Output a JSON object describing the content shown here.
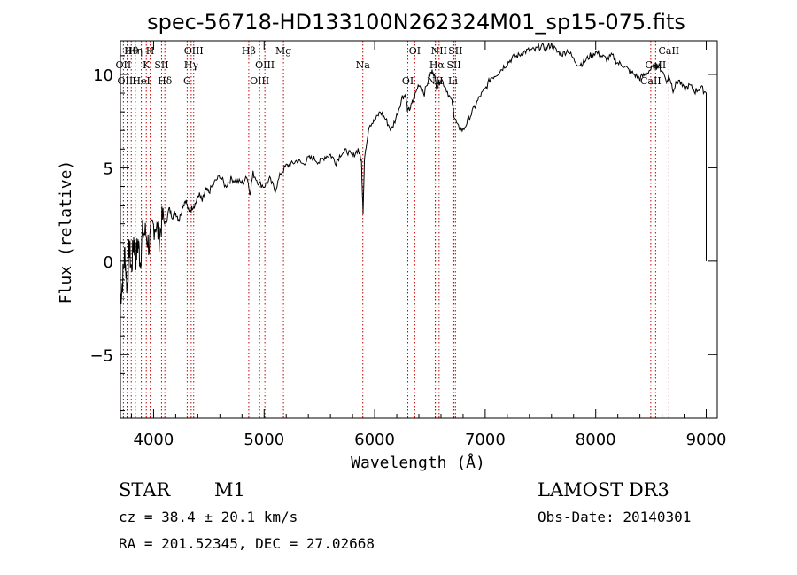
{
  "chart_data": {
    "type": "line",
    "title": "spec-56718-HD133100N262324M01_sp15-075.fits",
    "xlabel": "Wavelength (Å)",
    "ylabel": "Flux (relative)",
    "xlim": [
      3700,
      9100
    ],
    "ylim": [
      -8.4,
      11.8
    ],
    "xticks": [
      4000,
      5000,
      6000,
      7000,
      8000,
      9000
    ],
    "xtick_labels": [
      "4000",
      "5000",
      "6000",
      "7000",
      "8000",
      "9000"
    ],
    "yticks": [
      -5,
      0,
      5,
      10
    ],
    "ytick_labels": [
      "−5",
      "0",
      "5",
      "10"
    ],
    "grid": false,
    "series": [
      {
        "name": "spectrum",
        "x": [
          3700,
          3720,
          3740,
          3760,
          3780,
          3800,
          3820,
          3840,
          3860,
          3880,
          3900,
          3930,
          3960,
          3990,
          4020,
          4050,
          4080,
          4110,
          4140,
          4170,
          4200,
          4230,
          4260,
          4290,
          4320,
          4350,
          4380,
          4410,
          4440,
          4470,
          4500,
          4550,
          4600,
          4650,
          4700,
          4750,
          4800,
          4850,
          4870,
          4900,
          4950,
          5000,
          5050,
          5100,
          5150,
          5200,
          5250,
          5300,
          5350,
          5400,
          5450,
          5500,
          5550,
          5600,
          5650,
          5700,
          5750,
          5800,
          5850,
          5880,
          5895,
          5910,
          5950,
          6000,
          6050,
          6100,
          6150,
          6200,
          6250,
          6280,
          6300,
          6330,
          6360,
          6400,
          6450,
          6500,
          6530,
          6563,
          6600,
          6650,
          6700,
          6720,
          6750,
          6800,
          6850,
          6900,
          6950,
          7000,
          7050,
          7100,
          7150,
          7200,
          7250,
          7300,
          7350,
          7400,
          7450,
          7500,
          7550,
          7600,
          7650,
          7700,
          7750,
          7800,
          7850,
          7900,
          7950,
          8000,
          8050,
          8100,
          8150,
          8200,
          8250,
          8300,
          8350,
          8400,
          8450,
          8500,
          8542,
          8560,
          8600,
          8650,
          8662,
          8700,
          8750,
          8800,
          8850,
          8900,
          8950,
          9000
        ],
        "values": [
          -2.0,
          -1.0,
          0.5,
          -1.5,
          0.8,
          -0.5,
          1.2,
          0.2,
          1.0,
          0.0,
          1.5,
          1.5,
          0.8,
          1.8,
          2.0,
          1.3,
          2.3,
          2.0,
          2.8,
          2.4,
          2.6,
          2.2,
          2.9,
          3.3,
          2.6,
          2.9,
          3.1,
          3.6,
          3.2,
          3.8,
          3.7,
          4.2,
          4.6,
          4.0,
          4.4,
          4.3,
          4.2,
          4.5,
          3.6,
          4.7,
          4.2,
          4.0,
          4.4,
          3.8,
          4.7,
          5.1,
          5.2,
          5.4,
          5.2,
          5.5,
          5.5,
          5.3,
          5.6,
          5.7,
          5.3,
          5.8,
          5.9,
          5.6,
          6.0,
          5.4,
          2.7,
          5.7,
          7.3,
          7.5,
          8.0,
          7.6,
          7.0,
          7.8,
          8.8,
          8.9,
          8.0,
          8.3,
          8.8,
          9.5,
          9.0,
          10.0,
          10.2,
          9.3,
          9.8,
          9.2,
          8.5,
          7.8,
          7.2,
          7.0,
          7.6,
          8.2,
          8.8,
          9.2,
          9.8,
          10.0,
          10.3,
          10.6,
          10.9,
          11.0,
          11.2,
          11.3,
          11.3,
          11.5,
          11.4,
          11.6,
          11.2,
          11.1,
          11.3,
          10.8,
          10.5,
          10.7,
          11.0,
          11.2,
          11.0,
          10.8,
          11.0,
          10.6,
          10.5,
          10.2,
          10.0,
          9.8,
          10.0,
          10.3,
          10.4,
          10.5,
          10.2,
          9.6,
          10.0,
          9.2,
          9.7,
          9.2,
          9.4,
          9.1,
          9.3,
          9.0
        ]
      }
    ],
    "lines": [
      {
        "name": "Hθ",
        "wavelength": 3798
      },
      {
        "name": "OII",
        "wavelength": 3727
      },
      {
        "name": "OIII",
        "wavelength": 3760
      },
      {
        "name": "Hη",
        "wavelength": 3835
      },
      {
        "name": "K",
        "wavelength": 3934
      },
      {
        "name": "HeI",
        "wavelength": 3889
      },
      {
        "name": "H",
        "wavelength": 3969
      },
      {
        "name": "SII",
        "wavelength": 4072
      },
      {
        "name": "Hδ",
        "wavelength": 4102
      },
      {
        "name": "OIII",
        "wavelength": 4363
      },
      {
        "name": "Hγ",
        "wavelength": 4340
      },
      {
        "name": "G",
        "wavelength": 4304
      },
      {
        "name": "Hβ",
        "wavelength": 4861
      },
      {
        "name": "OIII",
        "wavelength": 5007
      },
      {
        "name": "OIII",
        "wavelength": 4959
      },
      {
        "name": "Mg",
        "wavelength": 5175
      },
      {
        "name": "Na",
        "wavelength": 5893
      },
      {
        "name": "OI",
        "wavelength": 6300
      },
      {
        "name": "OI",
        "wavelength": 6363
      },
      {
        "name": "Hα",
        "wavelength": 6563
      },
      {
        "name": "NII",
        "wavelength": 6548
      },
      {
        "name": "NII",
        "wavelength": 6583
      },
      {
        "name": "SII",
        "wavelength": 6717
      },
      {
        "name": "Li",
        "wavelength": 6708
      },
      {
        "name": "SII",
        "wavelength": 6731
      },
      {
        "name": "CaII",
        "wavelength": 8542
      },
      {
        "name": "CaII",
        "wavelength": 8498
      },
      {
        "name": "CaII",
        "wavelength": 8662
      }
    ]
  },
  "info": {
    "object_class": "STAR",
    "subclass": "M1",
    "cz": "cz = 38.4 ± 20.1 km/s",
    "radec": "RA = 201.52345, DEC =  27.02668",
    "survey": "LAMOST DR3",
    "obs_date": "Obs-Date: 20140301"
  },
  "colors": {
    "line_marker": "#c00000",
    "spectrum": "#000000",
    "axes": "#000000"
  }
}
